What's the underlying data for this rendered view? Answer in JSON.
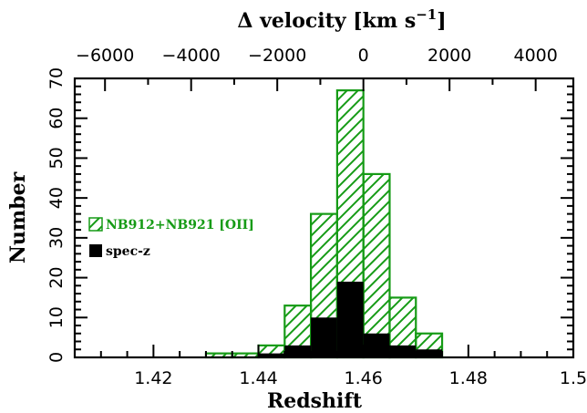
{
  "chart_data": {
    "type": "bar",
    "xlabel": "Redshift",
    "ylabel": "Number",
    "top_axis_label_main": "Δ velocity [km s",
    "top_axis_label_exp": "−1",
    "top_axis_label_close": "]",
    "xlim": [
      1.405,
      1.5
    ],
    "ylim": [
      0,
      70
    ],
    "x_ticks": [
      {
        "value": 1.42,
        "label": "1.42"
      },
      {
        "value": 1.44,
        "label": "1.44"
      },
      {
        "value": 1.46,
        "label": "1.46"
      },
      {
        "value": 1.48,
        "label": "1.48"
      },
      {
        "value": 1.5,
        "label": "1.5"
      }
    ],
    "y_ticks": [
      {
        "value": 0,
        "label": "0"
      },
      {
        "value": 10,
        "label": "10"
      },
      {
        "value": 20,
        "label": "20"
      },
      {
        "value": 30,
        "label": "30"
      },
      {
        "value": 40,
        "label": "40"
      },
      {
        "value": 50,
        "label": "50"
      },
      {
        "value": 60,
        "label": "60"
      },
      {
        "value": 70,
        "label": "70"
      }
    ],
    "top_ticks": [
      {
        "value": -6000,
        "label": "−6000"
      },
      {
        "value": -4000,
        "label": "−4000"
      },
      {
        "value": -2000,
        "label": "−2000"
      },
      {
        "value": 0,
        "label": "0"
      },
      {
        "value": 2000,
        "label": "2000"
      },
      {
        "value": 4000,
        "label": "4000"
      }
    ],
    "bin_width": 0.005,
    "bin_starts": [
      1.43,
      1.435,
      1.44,
      1.445,
      1.45,
      1.455,
      1.46,
      1.465,
      1.47
    ],
    "series": [
      {
        "name": "NB912+NB921 [OII]",
        "style": "hatched",
        "color": "#169b16",
        "values": [
          1,
          1,
          3,
          13,
          36,
          67,
          46,
          15,
          6
        ]
      },
      {
        "name": "spec-z",
        "style": "filled",
        "color": "#000000",
        "values": [
          0,
          0,
          1,
          3,
          10,
          19,
          6,
          3,
          2
        ]
      }
    ]
  }
}
